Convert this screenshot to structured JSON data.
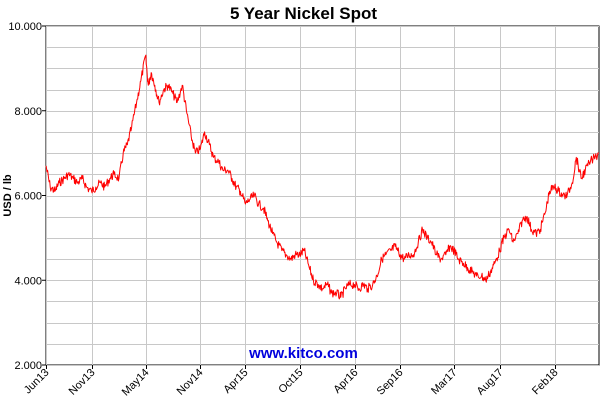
{
  "chart_data": {
    "type": "line",
    "title": "5 Year Nickel Spot",
    "ylabel": "USD / lb",
    "xlabel": "",
    "watermark": "www.kitco.com",
    "ylim": [
      2.0,
      10.0
    ],
    "yticks": [
      {
        "value": 2.0,
        "label": "2.000"
      },
      {
        "value": 4.0,
        "label": "4.000"
      },
      {
        "value": 6.0,
        "label": "6.000"
      },
      {
        "value": 8.0,
        "label": "8.000"
      },
      {
        "value": 10.0,
        "label": "10.000"
      }
    ],
    "xlim": [
      "2013-06-01",
      "2018-06-30"
    ],
    "xticks": [
      {
        "date": "2013-06-01",
        "label": "Jun13"
      },
      {
        "date": "2013-11-01",
        "label": "Nov13"
      },
      {
        "date": "2014-05-01",
        "label": "May14"
      },
      {
        "date": "2014-11-01",
        "label": "Nov14"
      },
      {
        "date": "2015-04-01",
        "label": "Apr15"
      },
      {
        "date": "2015-10-01",
        "label": "Oct15"
      },
      {
        "date": "2016-04-01",
        "label": "Apr16"
      },
      {
        "date": "2016-09-01",
        "label": "Sep16"
      },
      {
        "date": "2017-03-01",
        "label": "Mar17"
      },
      {
        "date": "2017-08-01",
        "label": "Aug17"
      },
      {
        "date": "2018-02-01",
        "label": "Feb18"
      }
    ],
    "grid": true,
    "legend": "none",
    "series": [
      {
        "color": "#ff0000",
        "points": [
          [
            "2013-06-01",
            6.7
          ],
          [
            "2013-06-15",
            6.2
          ],
          [
            "2013-07-01",
            6.1
          ],
          [
            "2013-07-15",
            6.3
          ],
          [
            "2013-08-01",
            6.4
          ],
          [
            "2013-08-15",
            6.5
          ],
          [
            "2013-09-01",
            6.4
          ],
          [
            "2013-09-15",
            6.3
          ],
          [
            "2013-10-01",
            6.4
          ],
          [
            "2013-10-15",
            6.2
          ],
          [
            "2013-11-01",
            6.1
          ],
          [
            "2013-11-15",
            6.2
          ],
          [
            "2013-12-01",
            6.3
          ],
          [
            "2013-12-15",
            6.2
          ],
          [
            "2014-01-01",
            6.4
          ],
          [
            "2014-01-15",
            6.5
          ],
          [
            "2014-02-01",
            6.4
          ],
          [
            "2014-02-15",
            7.0
          ],
          [
            "2014-03-01",
            7.2
          ],
          [
            "2014-03-15",
            7.6
          ],
          [
            "2014-04-01",
            8.2
          ],
          [
            "2014-04-15",
            8.7
          ],
          [
            "2014-05-01",
            9.3
          ],
          [
            "2014-05-10",
            8.6
          ],
          [
            "2014-05-20",
            8.9
          ],
          [
            "2014-06-01",
            8.6
          ],
          [
            "2014-06-15",
            8.2
          ],
          [
            "2014-07-01",
            8.5
          ],
          [
            "2014-07-15",
            8.6
          ],
          [
            "2014-08-01",
            8.4
          ],
          [
            "2014-08-15",
            8.2
          ],
          [
            "2014-09-01",
            8.6
          ],
          [
            "2014-09-15",
            8.0
          ],
          [
            "2014-10-01",
            7.4
          ],
          [
            "2014-10-15",
            7.0
          ],
          [
            "2014-11-01",
            7.1
          ],
          [
            "2014-11-15",
            7.5
          ],
          [
            "2014-12-01",
            7.2
          ],
          [
            "2014-12-15",
            6.9
          ],
          [
            "2015-01-01",
            6.8
          ],
          [
            "2015-01-15",
            6.6
          ],
          [
            "2015-02-01",
            6.6
          ],
          [
            "2015-02-15",
            6.4
          ],
          [
            "2015-03-01",
            6.2
          ],
          [
            "2015-03-15",
            6.1
          ],
          [
            "2015-04-01",
            5.8
          ],
          [
            "2015-04-15",
            5.9
          ],
          [
            "2015-05-01",
            6.0
          ],
          [
            "2015-05-15",
            5.8
          ],
          [
            "2015-06-01",
            5.7
          ],
          [
            "2015-06-15",
            5.4
          ],
          [
            "2015-07-01",
            5.1
          ],
          [
            "2015-07-15",
            4.9
          ],
          [
            "2015-08-01",
            4.7
          ],
          [
            "2015-08-15",
            4.6
          ],
          [
            "2015-09-01",
            4.5
          ],
          [
            "2015-09-15",
            4.6
          ],
          [
            "2015-10-01",
            4.6
          ],
          [
            "2015-10-15",
            4.7
          ],
          [
            "2015-11-01",
            4.3
          ],
          [
            "2015-11-15",
            4.0
          ],
          [
            "2015-12-01",
            3.9
          ],
          [
            "2015-12-15",
            3.8
          ],
          [
            "2016-01-01",
            3.9
          ],
          [
            "2016-01-15",
            3.7
          ],
          [
            "2016-02-01",
            3.7
          ],
          [
            "2016-02-15",
            3.6
          ],
          [
            "2016-03-01",
            3.8
          ],
          [
            "2016-03-15",
            3.9
          ],
          [
            "2016-04-01",
            3.9
          ],
          [
            "2016-04-15",
            3.8
          ],
          [
            "2016-05-01",
            3.9
          ],
          [
            "2016-05-15",
            3.8
          ],
          [
            "2016-06-01",
            3.9
          ],
          [
            "2016-06-15",
            4.1
          ],
          [
            "2016-07-01",
            4.5
          ],
          [
            "2016-07-15",
            4.6
          ],
          [
            "2016-08-01",
            4.7
          ],
          [
            "2016-08-15",
            4.8
          ],
          [
            "2016-09-01",
            4.6
          ],
          [
            "2016-09-15",
            4.5
          ],
          [
            "2016-10-01",
            4.6
          ],
          [
            "2016-10-15",
            4.6
          ],
          [
            "2016-11-01",
            4.9
          ],
          [
            "2016-11-15",
            5.2
          ],
          [
            "2016-12-01",
            5.0
          ],
          [
            "2016-12-15",
            4.9
          ],
          [
            "2017-01-01",
            4.6
          ],
          [
            "2017-01-15",
            4.5
          ],
          [
            "2017-02-01",
            4.6
          ],
          [
            "2017-02-15",
            4.8
          ],
          [
            "2017-03-01",
            4.7
          ],
          [
            "2017-03-15",
            4.5
          ],
          [
            "2017-04-01",
            4.4
          ],
          [
            "2017-04-15",
            4.3
          ],
          [
            "2017-05-01",
            4.2
          ],
          [
            "2017-05-15",
            4.1
          ],
          [
            "2017-06-01",
            4.1
          ],
          [
            "2017-06-15",
            4.0
          ],
          [
            "2017-07-01",
            4.2
          ],
          [
            "2017-07-15",
            4.4
          ],
          [
            "2017-08-01",
            4.7
          ],
          [
            "2017-08-15",
            5.0
          ],
          [
            "2017-09-01",
            5.2
          ],
          [
            "2017-09-15",
            4.9
          ],
          [
            "2017-10-01",
            5.1
          ],
          [
            "2017-10-15",
            5.4
          ],
          [
            "2017-11-01",
            5.5
          ],
          [
            "2017-11-15",
            5.2
          ],
          [
            "2017-12-01",
            5.1
          ],
          [
            "2017-12-15",
            5.2
          ],
          [
            "2018-01-01",
            5.6
          ],
          [
            "2018-01-15",
            6.1
          ],
          [
            "2018-02-01",
            6.2
          ],
          [
            "2018-02-15",
            6.1
          ],
          [
            "2018-03-01",
            6.0
          ],
          [
            "2018-03-15",
            6.0
          ],
          [
            "2018-04-01",
            6.3
          ],
          [
            "2018-04-15",
            6.9
          ],
          [
            "2018-05-01",
            6.4
          ],
          [
            "2018-05-15",
            6.6
          ],
          [
            "2018-06-01",
            6.8
          ],
          [
            "2018-06-30",
            7.0
          ]
        ]
      }
    ]
  }
}
